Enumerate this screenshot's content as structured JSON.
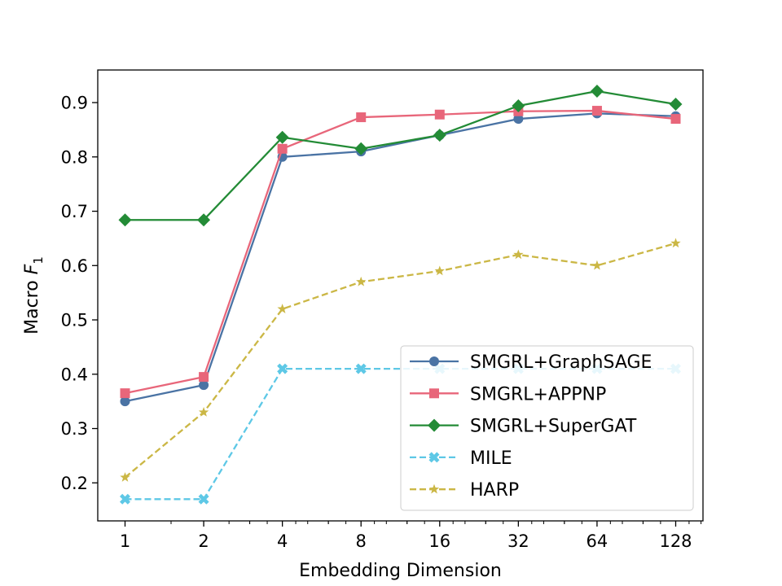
{
  "chart_data": {
    "type": "line",
    "title": "",
    "xlabel": "Embedding Dimension",
    "ylabel_main": "Macro ",
    "ylabel_var": "F",
    "ylabel_sub": "1",
    "x_scale": "log2",
    "x": [
      1,
      2,
      4,
      8,
      16,
      32,
      64,
      128
    ],
    "x_tick_labels": [
      "1",
      "2",
      "4",
      "8",
      "16",
      "32",
      "64",
      "128"
    ],
    "ylim": [
      0.13,
      0.96
    ],
    "y_ticks": [
      0.2,
      0.3,
      0.4,
      0.5,
      0.6,
      0.7,
      0.8,
      0.9
    ],
    "y_tick_labels": [
      "0.2",
      "0.3",
      "0.4",
      "0.5",
      "0.6",
      "0.7",
      "0.8",
      "0.9"
    ],
    "legend_position": "lower-right",
    "series": [
      {
        "name": "SMGRL+GraphSAGE",
        "key": "graphsage",
        "color": "#4a73a4",
        "dash": "solid",
        "marker": "circle",
        "values": [
          0.35,
          0.38,
          0.8,
          0.81,
          0.84,
          0.87,
          0.88,
          0.875
        ]
      },
      {
        "name": "SMGRL+APPNP",
        "key": "appnp",
        "color": "#e8667a",
        "dash": "solid",
        "marker": "square",
        "values": [
          0.365,
          0.395,
          0.815,
          0.873,
          0.878,
          0.884,
          0.885,
          0.87
        ]
      },
      {
        "name": "SMGRL+SuperGAT",
        "key": "supergat",
        "color": "#238b36",
        "dash": "solid",
        "marker": "diamond",
        "values": [
          0.684,
          0.684,
          0.836,
          0.815,
          0.84,
          0.894,
          0.921,
          0.897
        ]
      },
      {
        "name": "MILE",
        "key": "mile",
        "color": "#5ec8e6",
        "dash": "dashed",
        "marker": "x",
        "values": [
          0.17,
          0.17,
          0.41,
          0.41,
          0.41,
          0.41,
          0.41,
          0.41
        ]
      },
      {
        "name": "HARP",
        "key": "harp",
        "color": "#cbb745",
        "dash": "dashed",
        "marker": "star",
        "values": [
          0.21,
          0.33,
          0.52,
          0.57,
          0.59,
          0.62,
          0.6,
          0.641
        ]
      }
    ]
  }
}
